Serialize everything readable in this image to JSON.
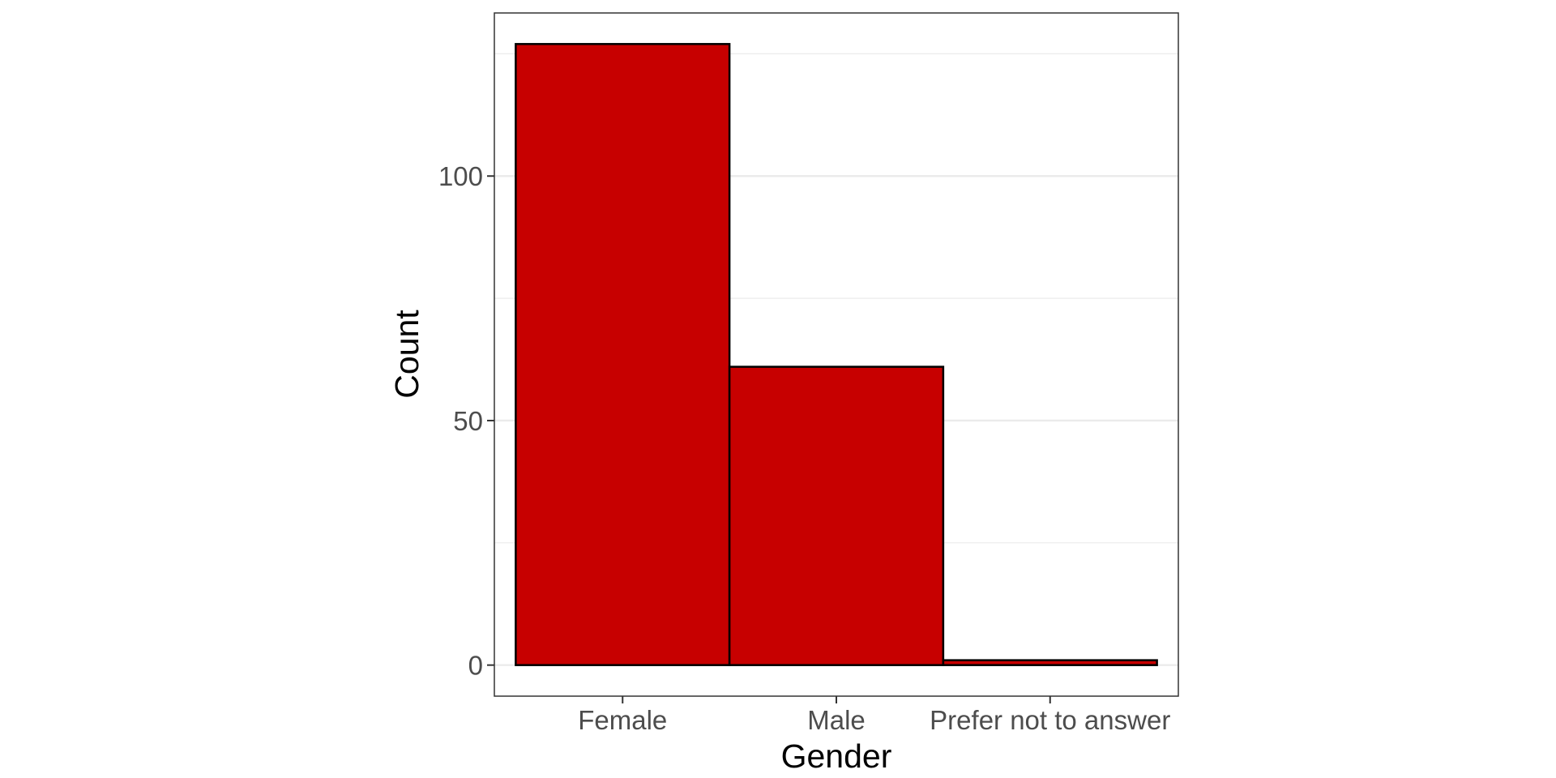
{
  "chart_data": {
    "type": "bar",
    "categories": [
      "Female",
      "Male",
      "Prefer not to answer"
    ],
    "values": [
      127,
      61,
      1
    ],
    "title": "",
    "xlabel": "Gender",
    "ylabel": "Count",
    "ylim": [
      -6.35,
      133.35
    ],
    "yticks": [
      0,
      50,
      100
    ],
    "yticks_labels": [
      "0",
      "50",
      "100"
    ],
    "grid": true,
    "bar_color": "#c70000",
    "bar_edge_color": "#000000",
    "grid_color": "#ebebeb",
    "panel_border_color": "#333333"
  }
}
